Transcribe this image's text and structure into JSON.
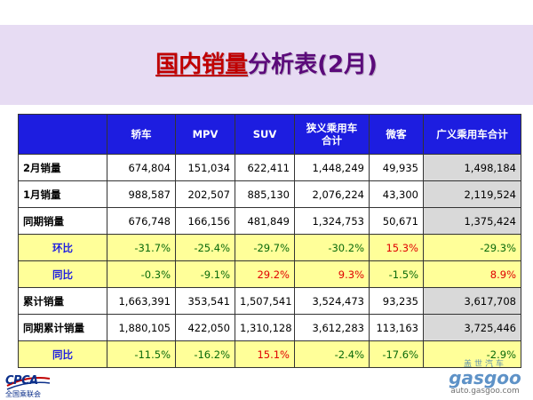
{
  "title": {
    "main": "国内销量",
    "sub": "分析表(2月)"
  },
  "table": {
    "headers": [
      "",
      "轿车",
      "MPV",
      "SUV",
      "狭义乘用车\n合计",
      "微客",
      "广义乘用车合计"
    ],
    "rows": [
      {
        "label": "2月销量",
        "kind": "value",
        "values": [
          "674,804",
          "151,034",
          "622,411",
          "1,448,249",
          "49,935",
          "1,498,184"
        ]
      },
      {
        "label": "1月销量",
        "kind": "value",
        "values": [
          "988,587",
          "202,507",
          "885,130",
          "2,076,224",
          "43,300",
          "2,119,524"
        ]
      },
      {
        "label": "同期销量",
        "kind": "value",
        "values": [
          "676,748",
          "166,156",
          "481,849",
          "1,324,753",
          "50,671",
          "1,375,424"
        ]
      },
      {
        "label": "环比",
        "kind": "ratio",
        "values": [
          "-31.7%",
          "-25.4%",
          "-29.7%",
          "-30.2%",
          "15.3%",
          "-29.3%"
        ]
      },
      {
        "label": "同比",
        "kind": "ratio",
        "values": [
          "-0.3%",
          "-9.1%",
          "29.2%",
          "9.3%",
          "-1.5%",
          "8.9%"
        ]
      },
      {
        "label": "累计销量",
        "kind": "value",
        "values": [
          "1,663,391",
          "353,541",
          "1,507,541",
          "3,524,473",
          "93,235",
          "3,617,708"
        ]
      },
      {
        "label": "同期累计销量",
        "kind": "value",
        "values": [
          "1,880,105",
          "422,050",
          "1,310,128",
          "3,612,283",
          "113,163",
          "3,725,446"
        ]
      },
      {
        "label": "同比",
        "kind": "ratio",
        "values": [
          "-11.5%",
          "-16.2%",
          "15.1%",
          "-2.4%",
          "-17.6%",
          "-2.9%"
        ]
      }
    ]
  },
  "logo": {
    "text": "CPCA",
    "sub": "全国乘联会"
  },
  "watermark": {
    "cn": "盖世汽车",
    "brand": "gasgoo",
    "url": "auto.gasgoo.com"
  },
  "colors": {
    "header_bg": "#1d1de0",
    "ratio_row_bg": "#ffff99",
    "total_col_bg": "#d9d9d9",
    "positive_text": "#e00000",
    "negative_text": "#0a6a0a",
    "title_red": "#c00000",
    "title_purple": "#5b0a7a",
    "band_bg": "#e7dcf3"
  }
}
